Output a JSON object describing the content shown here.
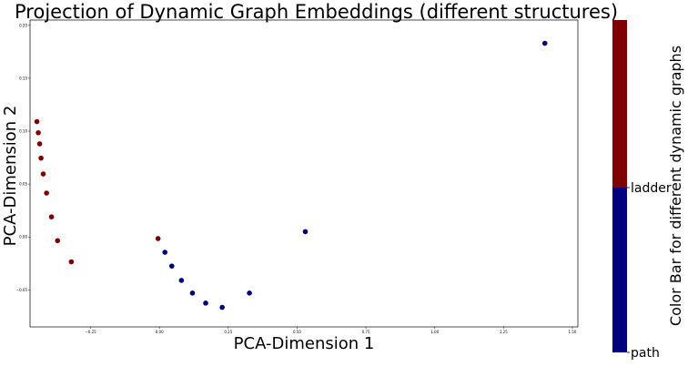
{
  "chart_data": {
    "type": "scatter",
    "title": "Projection of Dynamic Graph Embeddings (different structures)",
    "xlabel": "PCA-Dimension 1",
    "ylabel": "PCA-Dimension 2",
    "xlim": [
      -0.47,
      1.52
    ],
    "ylim": [
      -0.085,
      0.205
    ],
    "xticks": [
      -0.25,
      0.0,
      0.25,
      0.5,
      0.75,
      1.0,
      1.25,
      1.5
    ],
    "xtick_labels": [
      "−0.25",
      "0.00",
      "0.25",
      "0.50",
      "0.75",
      "1.00",
      "1.25",
      "1.50"
    ],
    "yticks": [
      -0.05,
      0.0,
      0.05,
      0.1,
      0.15,
      0.2
    ],
    "ytick_labels": [
      "−0.05",
      "0.00",
      "0.05",
      "0.10",
      "0.15",
      "0.20"
    ],
    "grid": false,
    "series": [
      {
        "name": "ladder",
        "color": "#800000",
        "points": [
          {
            "x": -0.445,
            "y": 0.109
          },
          {
            "x": -0.44,
            "y": 0.0985
          },
          {
            "x": -0.435,
            "y": 0.088
          },
          {
            "x": -0.43,
            "y": 0.0745
          },
          {
            "x": -0.422,
            "y": 0.0595
          },
          {
            "x": -0.41,
            "y": 0.0415
          },
          {
            "x": -0.392,
            "y": 0.019
          },
          {
            "x": -0.37,
            "y": -0.0035
          },
          {
            "x": -0.32,
            "y": -0.0235
          },
          {
            "x": -0.005,
            "y": -0.0015
          }
        ]
      },
      {
        "name": "path",
        "color": "#000080",
        "points": [
          {
            "x": 0.02,
            "y": -0.0145
          },
          {
            "x": 0.045,
            "y": -0.0275
          },
          {
            "x": 0.08,
            "y": -0.041
          },
          {
            "x": 0.12,
            "y": -0.053
          },
          {
            "x": 0.168,
            "y": -0.0625
          },
          {
            "x": 0.228,
            "y": -0.0665
          },
          {
            "x": 0.327,
            "y": -0.053
          },
          {
            "x": 0.53,
            "y": 0.005
          },
          {
            "x": 1.4,
            "y": 0.183
          }
        ]
      }
    ],
    "colorbar": {
      "label": "Color Bar for different dynamic graphs",
      "colors": [
        "#000080",
        "#800000"
      ],
      "ticks": [
        "path",
        "ladder"
      ]
    }
  }
}
